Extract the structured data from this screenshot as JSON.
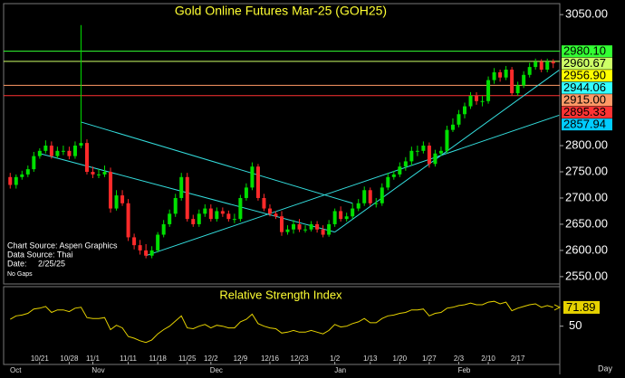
{
  "chart_data": [
    {
      "type": "candlestick",
      "title": "Gold Online Futures Mar-25 (GOH25)",
      "open": [
        2740,
        2725,
        2740,
        2745,
        2755,
        2780,
        2790,
        2800,
        2780,
        2790,
        2790,
        2780,
        2800,
        2805,
        2750,
        2745,
        2745,
        2750,
        2680,
        2705,
        2690,
        2625,
        2610,
        2600,
        2590,
        2600,
        2630,
        2650,
        2670,
        2700,
        2740,
        2660,
        2650,
        2670,
        2680,
        2660,
        2675,
        2670,
        2660,
        2660,
        2700,
        2720,
        2760,
        2700,
        2680,
        2670,
        2665,
        2635,
        2640,
        2650,
        2640,
        2640,
        2650,
        2640,
        2630,
        2650,
        2675,
        2660,
        2665,
        2680,
        2690,
        2715,
        2690,
        2690,
        2720,
        2740,
        2745,
        2760,
        2770,
        2790,
        2790,
        2800,
        2765,
        2785,
        2790,
        2830,
        2840,
        2860,
        2875,
        2895,
        2885,
        2885,
        2925,
        2940,
        2930,
        2945,
        2900,
        2915,
        2935,
        2950,
        2960,
        2945,
        2960
      ],
      "high": [
        2748,
        2745,
        2752,
        2762,
        2788,
        2795,
        2810,
        2808,
        2798,
        2800,
        2798,
        2808,
        3030,
        2812,
        2760,
        2755,
        2762,
        2758,
        2715,
        2715,
        2698,
        2632,
        2620,
        2612,
        2608,
        2635,
        2658,
        2678,
        2708,
        2748,
        2748,
        2668,
        2678,
        2688,
        2688,
        2682,
        2682,
        2676,
        2670,
        2706,
        2728,
        2768,
        2765,
        2708,
        2688,
        2675,
        2675,
        2648,
        2658,
        2660,
        2648,
        2656,
        2656,
        2648,
        2658,
        2680,
        2684,
        2672,
        2690,
        2698,
        2722,
        2720,
        2700,
        2728,
        2748,
        2752,
        2768,
        2778,
        2798,
        2800,
        2808,
        2806,
        2792,
        2798,
        2838,
        2852,
        2868,
        2882,
        2902,
        2902,
        2895,
        2932,
        2948,
        2945,
        2952,
        2950,
        2922,
        2942,
        2958,
        2966,
        2965,
        2966,
        2965
      ],
      "low": [
        2718,
        2718,
        2735,
        2740,
        2750,
        2775,
        2785,
        2775,
        2776,
        2782,
        2774,
        2775,
        2795,
        2745,
        2738,
        2738,
        2740,
        2672,
        2676,
        2685,
        2618,
        2602,
        2592,
        2585,
        2585,
        2596,
        2625,
        2645,
        2664,
        2695,
        2655,
        2645,
        2645,
        2664,
        2655,
        2655,
        2664,
        2655,
        2652,
        2655,
        2695,
        2715,
        2695,
        2675,
        2665,
        2660,
        2628,
        2630,
        2632,
        2635,
        2634,
        2636,
        2634,
        2625,
        2626,
        2645,
        2655,
        2655,
        2660,
        2675,
        2685,
        2685,
        2682,
        2685,
        2715,
        2735,
        2740,
        2752,
        2762,
        2780,
        2785,
        2758,
        2760,
        2780,
        2785,
        2826,
        2835,
        2852,
        2870,
        2878,
        2875,
        2880,
        2918,
        2922,
        2925,
        2895,
        2895,
        2910,
        2930,
        2945,
        2940,
        2940,
        2948
      ],
      "close": [
        2725,
        2740,
        2745,
        2755,
        2780,
        2790,
        2800,
        2780,
        2790,
        2790,
        2780,
        2800,
        2805,
        2750,
        2745,
        2745,
        2750,
        2680,
        2705,
        2690,
        2625,
        2610,
        2600,
        2590,
        2600,
        2630,
        2650,
        2670,
        2700,
        2740,
        2660,
        2650,
        2670,
        2680,
        2660,
        2675,
        2670,
        2660,
        2660,
        2700,
        2720,
        2760,
        2700,
        2680,
        2670,
        2665,
        2635,
        2640,
        2650,
        2640,
        2640,
        2650,
        2640,
        2630,
        2650,
        2675,
        2660,
        2665,
        2680,
        2690,
        2715,
        2690,
        2690,
        2720,
        2740,
        2745,
        2760,
        2770,
        2790,
        2790,
        2800,
        2765,
        2785,
        2790,
        2830,
        2840,
        2860,
        2875,
        2895,
        2885,
        2885,
        2925,
        2940,
        2930,
        2945,
        2900,
        2915,
        2935,
        2950,
        2960,
        2945,
        2960,
        2957
      ],
      "up_color": "#00e000",
      "down_color": "#ff2a2a",
      "ylim": [
        2536,
        3071
      ],
      "yticks": [
        {
          "value": 3050,
          "label": "3050.00"
        },
        {
          "value": 2800,
          "label": "2800.00"
        },
        {
          "value": 2750,
          "label": "2750.00"
        },
        {
          "value": 2700,
          "label": "2700.00"
        },
        {
          "value": 2650,
          "label": "2650.00"
        },
        {
          "value": 2600,
          "label": "2600.00"
        },
        {
          "value": 2550,
          "label": "2550.00"
        }
      ],
      "price_levels": [
        {
          "value": 2980.1,
          "label": "2980.10",
          "color": "#33ff33",
          "hline": true
        },
        {
          "value": 2960.67,
          "label": "2960.67",
          "color": "#ccff66",
          "hline": true
        },
        {
          "value": 2956.9,
          "label": "2956.90",
          "color": "#ffff00",
          "hline": false
        },
        {
          "value": 2944.06,
          "label": "2944.06",
          "color": "#33ffff",
          "hline": false
        },
        {
          "value": 2915.0,
          "label": "2915.00",
          "color": "#ff9966",
          "hline": true
        },
        {
          "value": 2895.33,
          "label": "2895.33",
          "color": "#ff3333",
          "hline": true
        },
        {
          "value": 2857.94,
          "label": "2857.94",
          "color": "#00ccff",
          "hline": false
        }
      ],
      "trendlines": [
        {
          "points": [
            [
              12,
              2845
            ],
            [
              58,
              2690
            ]
          ]
        },
        {
          "points": [
            [
              5,
              2785
            ],
            [
              55,
              2635
            ]
          ]
        },
        {
          "points": [
            [
              55,
              2635
            ],
            [
              93,
              2944.06
            ]
          ]
        },
        {
          "points": [
            [
              23,
              2590
            ],
            [
              93,
              2857.94
            ]
          ]
        }
      ],
      "trendline_color": "#33dddd",
      "notes": [
        "Chart Source: Aspen Graphics",
        "Data Source: Thai",
        "Date:     2/25/25",
        "No Gaps"
      ]
    },
    {
      "type": "line",
      "title": "Relative Strength Index",
      "color": "#e6d200",
      "values": [
        58,
        62,
        63,
        65,
        70,
        71,
        73,
        66,
        69,
        69,
        67,
        71,
        72,
        60,
        59,
        59,
        60,
        46,
        51,
        48,
        38,
        36,
        33,
        31,
        34,
        41,
        46,
        50,
        56,
        62,
        48,
        47,
        50,
        52,
        48,
        51,
        50,
        48,
        48,
        55,
        58,
        64,
        53,
        50,
        48,
        47,
        42,
        43,
        45,
        43,
        43,
        45,
        43,
        41,
        45,
        52,
        49,
        50,
        53,
        55,
        59,
        54,
        54,
        59,
        62,
        63,
        65,
        66,
        69,
        69,
        70,
        62,
        65,
        66,
        71,
        72,
        74,
        75,
        77,
        75,
        75,
        78,
        79,
        76,
        78,
        68,
        71,
        73,
        75,
        76,
        72,
        74,
        71.89
      ],
      "ylim": [
        17,
        95
      ],
      "yticks": [
        50
      ],
      "categories": [
        null,
        null,
        null,
        null,
        null,
        "10/21",
        null,
        null,
        null,
        null,
        "10/28",
        null,
        null,
        null,
        "11/1",
        null,
        null,
        null,
        null,
        null,
        "11/11",
        null,
        null,
        null,
        null,
        "11/18",
        null,
        null,
        null,
        null,
        "11/25",
        null,
        null,
        null,
        "12/2",
        null,
        null,
        null,
        null,
        "12/9",
        null,
        null,
        null,
        null,
        "12/16",
        null,
        null,
        null,
        null,
        "12/23",
        null,
        null,
        null,
        null,
        null,
        "1/2",
        null,
        null,
        null,
        null,
        null,
        "1/13",
        null,
        null,
        null,
        null,
        "1/20",
        null,
        null,
        null,
        null,
        "1/27",
        null,
        null,
        null,
        null,
        "2/3",
        null,
        null,
        null,
        null,
        "2/10",
        null,
        null,
        null,
        null,
        "2/17",
        null,
        null,
        null,
        null,
        null,
        null
      ],
      "months": [
        "Oct",
        null,
        null,
        null,
        null,
        null,
        null,
        null,
        null,
        null,
        null,
        null,
        null,
        null,
        "Nov",
        null,
        null,
        null,
        null,
        null,
        null,
        null,
        null,
        null,
        null,
        null,
        null,
        null,
        null,
        null,
        null,
        null,
        null,
        null,
        "Dec",
        null,
        null,
        null,
        null,
        null,
        null,
        null,
        null,
        null,
        null,
        null,
        null,
        null,
        null,
        null,
        null,
        null,
        null,
        null,
        null,
        "Jan",
        null,
        null,
        null,
        null,
        null,
        null,
        null,
        null,
        null,
        null,
        null,
        null,
        null,
        null,
        null,
        null,
        null,
        null,
        null,
        null,
        "Feb",
        null,
        null,
        null,
        null,
        null,
        null,
        null,
        null,
        null,
        null,
        null,
        null,
        null,
        null,
        null,
        null
      ],
      "xlabel": "Day"
    }
  ]
}
